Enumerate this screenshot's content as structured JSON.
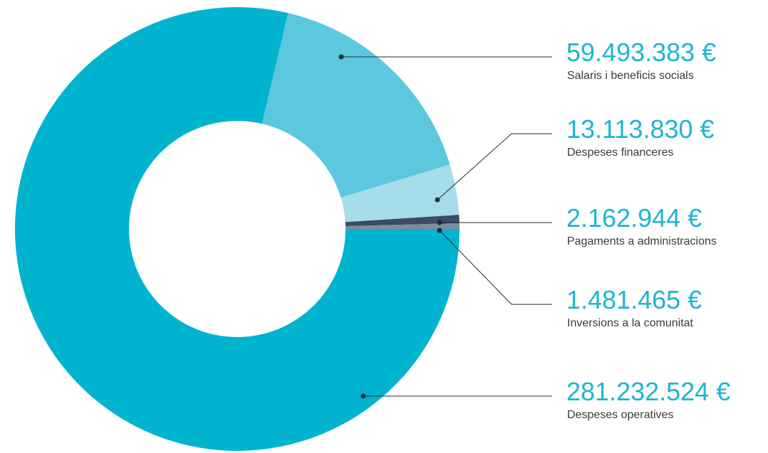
{
  "chart_data": {
    "type": "donut",
    "categories": [
      "Salaris i beneficis socials",
      "Despeses financeres",
      "Pagaments a administracions",
      "Inversions a la comunitat",
      "Despeses operatives"
    ],
    "values": [
      59493383,
      13113830,
      2162944,
      1481465,
      281232524
    ],
    "value_labels": [
      "59.493.383 €",
      "13.113.830 €",
      "2.162.944 €",
      "1.481.465 €",
      "281.232.524 €"
    ],
    "colors": [
      "#5bc8de",
      "#a6dde9",
      "#3d4b64",
      "#7f8c9e",
      "#00b4d0"
    ]
  }
}
